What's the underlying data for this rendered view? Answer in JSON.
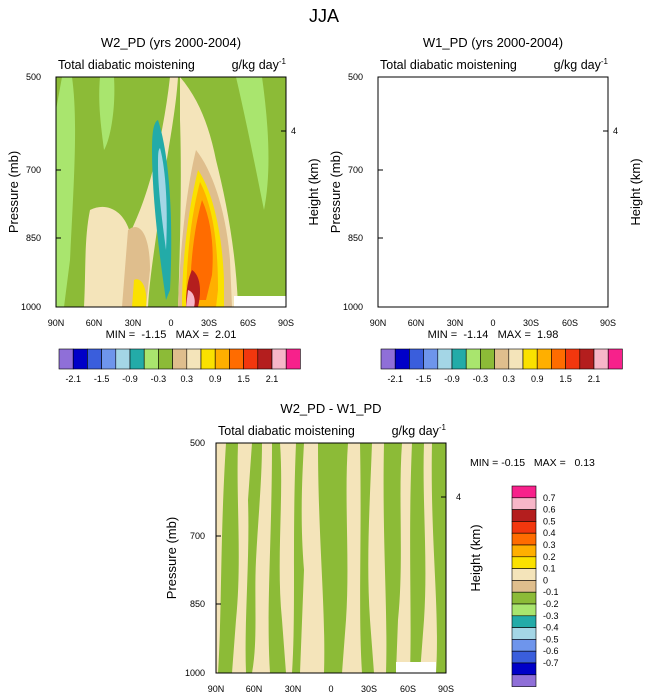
{
  "figure_title": "JJA",
  "colors": {
    "levels": [
      "#8F6FD8",
      "#0000C8",
      "#3A5EDC",
      "#6E95EC",
      "#A4D6E6",
      "#23ABA8",
      "#A9E56E",
      "#8CBB37",
      "#DFBE8D",
      "#F4E4BA",
      "#FAE100",
      "#FFAF00",
      "#FF6C00",
      "#F2370E",
      "#B41E1E",
      "#F7B6C8",
      "#F7218B"
    ]
  },
  "chart_data": [
    {
      "id": "w2",
      "type": "contour",
      "title": "W2_PD (yrs 2000-2004)",
      "left_label": "Total diabatic moistening",
      "units": "g/kg day",
      "units_exp": "-1",
      "ylabel": "Pressure (mb)",
      "ylabel_right": "Height (km)",
      "right_tick": "4",
      "x_ticks": [
        "90N",
        "60N",
        "30N",
        "0",
        "30S",
        "60S",
        "90S"
      ],
      "y_ticks": [
        "500",
        "700",
        "850",
        "1000"
      ],
      "stats": "MIN =  -1.15   MAX =  2.01",
      "min": -1.15,
      "max": 2.01,
      "colorbar_labels": [
        "-2.1",
        "-1.5",
        "-0.9",
        "-0.3",
        "0.3",
        "0.9",
        "1.5",
        "2.1"
      ]
    },
    {
      "id": "w1",
      "type": "contour",
      "title": "W1_PD (yrs 2000-2004)",
      "left_label": "Total diabatic moistening",
      "units": "g/kg day",
      "units_exp": "-1",
      "ylabel": "Pressure (mb)",
      "ylabel_right": "Height (km)",
      "right_tick": "4",
      "x_ticks": [
        "90N",
        "60N",
        "30N",
        "0",
        "30S",
        "60S",
        "90S"
      ],
      "y_ticks": [
        "500",
        "700",
        "850",
        "1000"
      ],
      "stats": "MIN =  -1.14   MAX =  1.98",
      "min": -1.14,
      "max": 1.98,
      "colorbar_labels": [
        "-2.1",
        "-1.5",
        "-0.9",
        "-0.3",
        "0.3",
        "0.9",
        "1.5",
        "2.1"
      ]
    },
    {
      "id": "diff",
      "type": "contour",
      "title": "W2_PD - W1_PD",
      "left_label": "Total diabatic moistening",
      "units": "g/kg day",
      "units_exp": "-1",
      "ylabel": "Pressure (mb)",
      "ylabel_right": "Height (km)",
      "right_tick": "4",
      "x_ticks": [
        "90N",
        "60N",
        "30N",
        "0",
        "30S",
        "60S",
        "90S"
      ],
      "y_ticks": [
        "500",
        "700",
        "850",
        "1000"
      ],
      "stats": "MIN = -0.15   MAX =   0.13",
      "min": -0.15,
      "max": 0.13,
      "colorbar_labels": [
        "0.7",
        "0.6",
        "0.5",
        "0.4",
        "0.3",
        "0.2",
        "0.1",
        "0",
        "-0.1",
        "-0.2",
        "-0.3",
        "-0.4",
        "-0.5",
        "-0.6",
        "-0.7"
      ]
    }
  ]
}
